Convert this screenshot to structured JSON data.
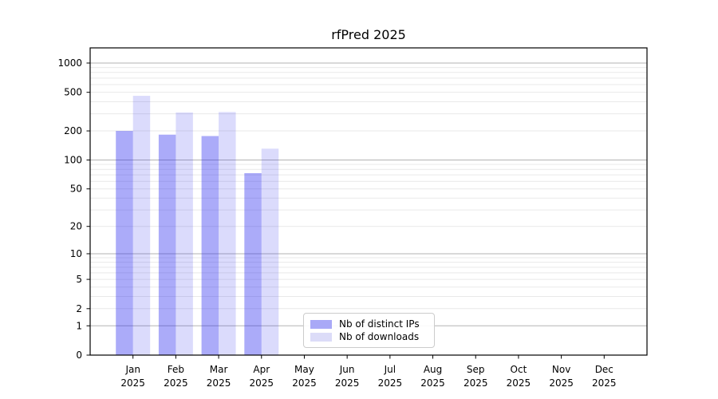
{
  "chart_data": {
    "type": "bar",
    "title": "rfPred 2025",
    "x": {
      "months": [
        "Jan",
        "Feb",
        "Mar",
        "Apr",
        "May",
        "Jun",
        "Jul",
        "Aug",
        "Sep",
        "Oct",
        "Nov",
        "Dec"
      ],
      "year": "2025"
    },
    "series": [
      {
        "name": "Nb of distinct IPs",
        "fill": "rgba(34,34,238,0.38)",
        "swatch_color": "#a9a9f7",
        "values": [
          200,
          183,
          177,
          73,
          null,
          null,
          null,
          null,
          null,
          null,
          null,
          null
        ]
      },
      {
        "name": "Nb of downloads",
        "fill": "rgba(34,34,238,0.16)",
        "swatch_color": "#dcdcf8",
        "values": [
          460,
          310,
          313,
          131,
          null,
          null,
          null,
          null,
          null,
          null,
          null,
          null
        ]
      }
    ],
    "y_axis": {
      "ticks": [
        0,
        1,
        2,
        5,
        10,
        20,
        50,
        100,
        200,
        500,
        1000
      ],
      "scale": "log10(value+1)",
      "ylim": [
        0,
        1000
      ]
    },
    "grid": {
      "on": true,
      "major_values": [
        1,
        10,
        100,
        1000
      ],
      "minor_pattern": "k×10^n for k=2..9",
      "major_color": "#b3b3b3",
      "minor_color": "#e9e9e9"
    },
    "legend_position": "inside-bottom-center"
  }
}
